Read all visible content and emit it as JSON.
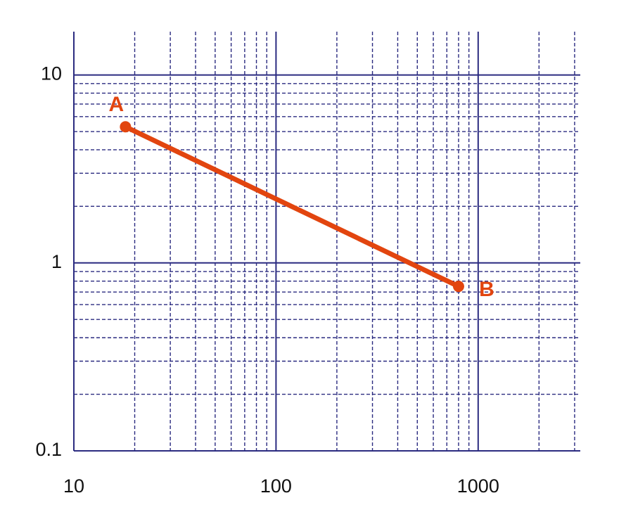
{
  "chart_data": {
    "type": "line",
    "log_x": true,
    "log_y": true,
    "xlim": [
      10,
      3200
    ],
    "ylim": [
      0.1,
      17
    ],
    "xticks": [
      10,
      100,
      1000
    ],
    "yticks": [
      0.1,
      1,
      10
    ],
    "x_minor_grid": [
      20,
      30,
      40,
      50,
      60,
      70,
      80,
      90,
      200,
      300,
      400,
      500,
      600,
      700,
      800,
      900,
      2000,
      3000
    ],
    "y_minor_grid": [
      0.2,
      0.3,
      0.4,
      0.5,
      0.6,
      0.7,
      0.8,
      0.9,
      2,
      3,
      4,
      5,
      6,
      7,
      8,
      9
    ],
    "grid": true,
    "grid_color": "#2b2b80",
    "series": [
      {
        "color": "#e2450f",
        "x": [
          18,
          800
        ],
        "values": [
          5.3,
          0.75
        ],
        "point_labels": [
          "A",
          "B"
        ]
      }
    ]
  }
}
